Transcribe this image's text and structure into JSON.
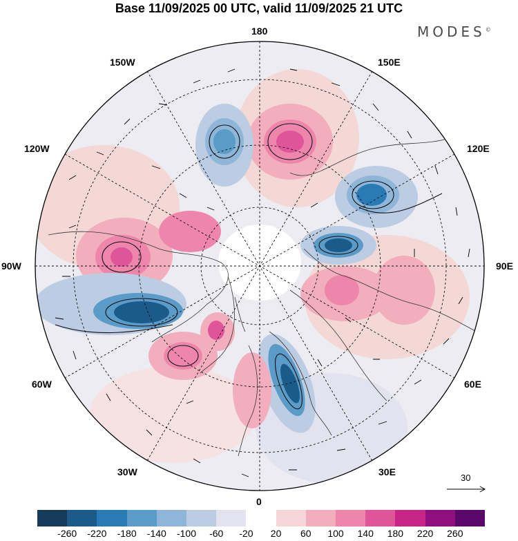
{
  "title": "Base 11/09/2025 00 UTC, valid 11/09/2025 21 UTC",
  "brand": "MODES",
  "brand_mark": "©",
  "lon_labels": {
    "n180": "180",
    "e150": "150E",
    "e120": "120E",
    "e90": "90E",
    "e60": "60E",
    "e30": "30E",
    "s0": "0",
    "w30": "30W",
    "w60": "60W",
    "w90": "90W",
    "w120": "120W",
    "w150": "150W"
  },
  "reference_vector": {
    "label": "30"
  },
  "colorbar": {
    "colors": [
      "#163a5a",
      "#1c5a8a",
      "#2a7ab6",
      "#5a9bc8",
      "#8fb6d8",
      "#bccce3",
      "#e3e3ef",
      "#ffffff",
      "#f7d6d9",
      "#f2aebd",
      "#ee86ac",
      "#e0559a",
      "#c72586",
      "#8f0f7e",
      "#5a086a"
    ],
    "ticks": [
      "-260",
      "-220",
      "-180",
      "-140",
      "-100",
      "-60",
      "-20",
      "20",
      "60",
      "100",
      "140",
      "180",
      "220",
      "260"
    ]
  },
  "map": {
    "anomalies": [
      {
        "name": "high-pacific-north",
        "sign": "positive",
        "peak": 160
      },
      {
        "name": "low-pacific-north",
        "sign": "negative",
        "peak": -170
      },
      {
        "name": "low-siberia-east",
        "sign": "negative",
        "peak": -190
      },
      {
        "name": "low-siberia-central",
        "sign": "negative",
        "peak": -200
      },
      {
        "name": "high-canada",
        "sign": "positive",
        "peak": 140
      },
      {
        "name": "low-hudson",
        "sign": "negative",
        "peak": -220
      },
      {
        "name": "high-central-asia",
        "sign": "positive",
        "peak": 110
      },
      {
        "name": "low-scandinavia",
        "sign": "negative",
        "peak": -190
      },
      {
        "name": "high-north-atlantic",
        "sign": "positive",
        "peak": 130
      },
      {
        "name": "high-greenland-sea",
        "sign": "positive",
        "peak": 150
      }
    ]
  }
}
